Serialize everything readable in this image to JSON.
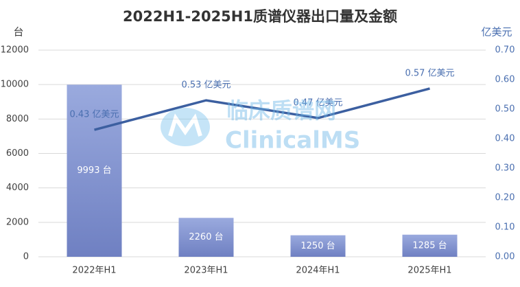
{
  "chart_data": {
    "type": "bar",
    "title": "2022H1-2025H1质谱仪器出口量及金额",
    "y_label": "台",
    "y2_label": "亿美元",
    "watermark": [
      "临床质谱网",
      "ClinicalMS"
    ],
    "categories": [
      "2022年H1",
      "2023年H1",
      "2024年H1",
      "2025年H1"
    ],
    "series": [
      {
        "name": "出口量",
        "type": "bar",
        "color": "#8497d0",
        "values": [
          9993,
          2260,
          1250,
          1285
        ],
        "value_labels": [
          "9993 台",
          "2260 台",
          "1250 台",
          "1285 台"
        ]
      },
      {
        "name": "金额",
        "type": "line",
        "axis": "y2",
        "color": "#3c5fa0",
        "values": [
          0.43,
          0.53,
          0.47,
          0.57
        ],
        "value_labels": [
          "0.43 亿美元",
          "0.53 亿美元",
          "0.47 亿美元",
          "0.57 亿美元"
        ]
      }
    ],
    "ylim": [
      0,
      12000
    ],
    "yticks": [
      0,
      2000,
      4000,
      6000,
      8000,
      10000,
      12000
    ],
    "y2lim": [
      0,
      0.7
    ],
    "y2ticks": [
      {
        "value": 0,
        "label": "0.00"
      },
      {
        "value": 0.1,
        "label": "0.10"
      },
      {
        "value": 0.2,
        "label": "0.20"
      },
      {
        "value": 0.3,
        "label": "0.30"
      },
      {
        "value": 0.4,
        "label": "0.40"
      },
      {
        "value": 0.5,
        "label": "0.50"
      },
      {
        "value": 0.6,
        "label": "0.60"
      },
      {
        "value": 0.7,
        "label": "0.70"
      }
    ],
    "grid": true
  }
}
